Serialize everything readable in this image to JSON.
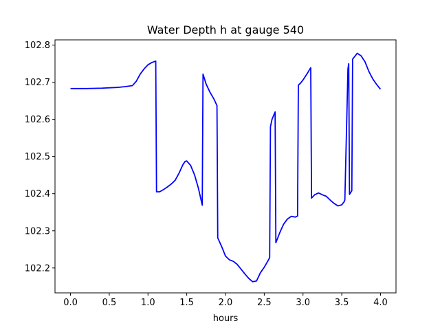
{
  "chart_data": {
    "type": "line",
    "title": "Water Depth h at gauge 540",
    "xlabel": "hours",
    "ylabel": "",
    "xlim": [
      -0.2,
      4.2
    ],
    "ylim": [
      102.133,
      102.814
    ],
    "x_ticks": [
      0.0,
      0.5,
      1.0,
      1.5,
      2.0,
      2.5,
      3.0,
      3.5,
      4.0
    ],
    "x_tick_labels": [
      "0.0",
      "0.5",
      "1.0",
      "1.5",
      "2.0",
      "2.5",
      "3.0",
      "3.5",
      "4.0"
    ],
    "y_ticks": [
      102.2,
      102.3,
      102.4,
      102.5,
      102.6,
      102.7,
      102.8
    ],
    "y_tick_labels": [
      "102.2",
      "102.3",
      "102.4",
      "102.5",
      "102.6",
      "102.7",
      "102.8"
    ],
    "grid": false,
    "legend": "none",
    "series": [
      {
        "color": "#0000ff",
        "x": [
          0.0,
          0.2,
          0.4,
          0.6,
          0.7,
          0.8,
          0.85,
          0.9,
          0.95,
          1.0,
          1.05,
          1.1,
          1.11,
          1.15,
          1.2,
          1.25,
          1.3,
          1.35,
          1.4,
          1.45,
          1.48,
          1.5,
          1.55,
          1.6,
          1.65,
          1.7,
          1.71,
          1.75,
          1.8,
          1.85,
          1.89,
          1.9,
          1.95,
          2.0,
          2.05,
          2.1,
          2.15,
          2.2,
          2.25,
          2.3,
          2.35,
          2.4,
          2.45,
          2.5,
          2.55,
          2.57,
          2.58,
          2.6,
          2.64,
          2.65,
          2.7,
          2.75,
          2.8,
          2.85,
          2.9,
          2.93,
          2.94,
          2.97,
          3.0,
          3.05,
          3.1,
          3.11,
          3.15,
          3.2,
          3.25,
          3.3,
          3.35,
          3.4,
          3.45,
          3.5,
          3.53,
          3.54,
          3.58,
          3.59,
          3.6,
          3.63,
          3.64,
          3.67,
          3.7,
          3.75,
          3.8,
          3.85,
          3.9,
          3.95,
          4.0
        ],
        "y": [
          102.683,
          102.683,
          102.684,
          102.686,
          102.688,
          102.691,
          102.703,
          102.722,
          102.736,
          102.747,
          102.753,
          102.757,
          102.405,
          102.405,
          102.411,
          102.418,
          102.426,
          102.436,
          102.455,
          102.478,
          102.487,
          102.488,
          102.476,
          102.451,
          102.415,
          102.369,
          102.722,
          102.695,
          102.673,
          102.655,
          102.637,
          102.281,
          102.258,
          102.232,
          102.222,
          102.218,
          102.21,
          102.197,
          102.184,
          102.172,
          102.163,
          102.165,
          102.187,
          102.202,
          102.22,
          102.228,
          102.58,
          102.6,
          102.62,
          102.268,
          102.295,
          102.318,
          102.332,
          102.339,
          102.337,
          102.34,
          102.692,
          102.698,
          102.706,
          102.722,
          102.739,
          102.388,
          102.397,
          102.402,
          102.397,
          102.393,
          102.383,
          102.374,
          102.367,
          102.37,
          102.378,
          102.383,
          102.736,
          102.75,
          102.398,
          102.408,
          102.762,
          102.77,
          102.778,
          102.771,
          102.755,
          102.729,
          102.709,
          102.694,
          102.681
        ]
      }
    ]
  }
}
